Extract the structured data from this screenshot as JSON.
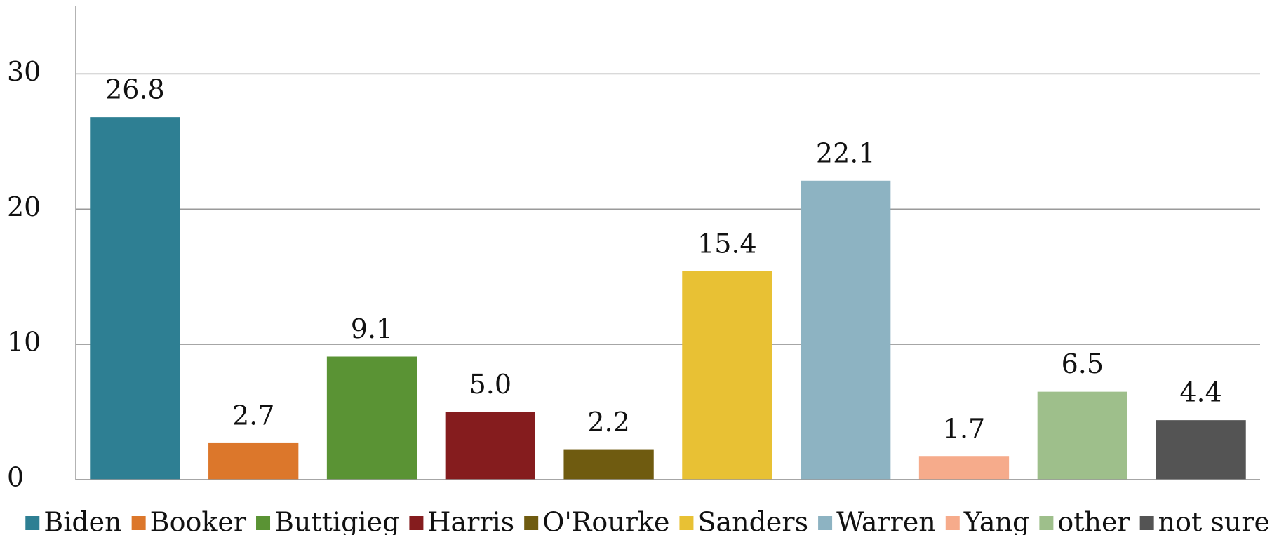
{
  "chart_data": {
    "type": "bar",
    "categories": [
      "Biden",
      "Booker",
      "Buttigieg",
      "Harris",
      "O'Rourke",
      "Sanders",
      "Warren",
      "Yang",
      "other",
      "not sure"
    ],
    "values": [
      26.8,
      2.7,
      9.1,
      5.0,
      2.2,
      15.4,
      22.1,
      1.7,
      6.5,
      4.4
    ],
    "value_labels": [
      "26.8",
      "2.7",
      "9.1",
      "5.0",
      "2.2",
      "15.4",
      "22.1",
      "1.7",
      "6.5",
      "4.4"
    ],
    "colors": [
      "#2e7f93",
      "#dc772b",
      "#5a9334",
      "#851c1e",
      "#6f5b10",
      "#e8c134",
      "#8db3c2",
      "#f6ab8b",
      "#9ebf8b",
      "#545454"
    ],
    "ylim": [
      0,
      35
    ],
    "yticks": [
      0,
      10,
      20,
      30
    ],
    "grid": true,
    "legend": "bottom"
  }
}
